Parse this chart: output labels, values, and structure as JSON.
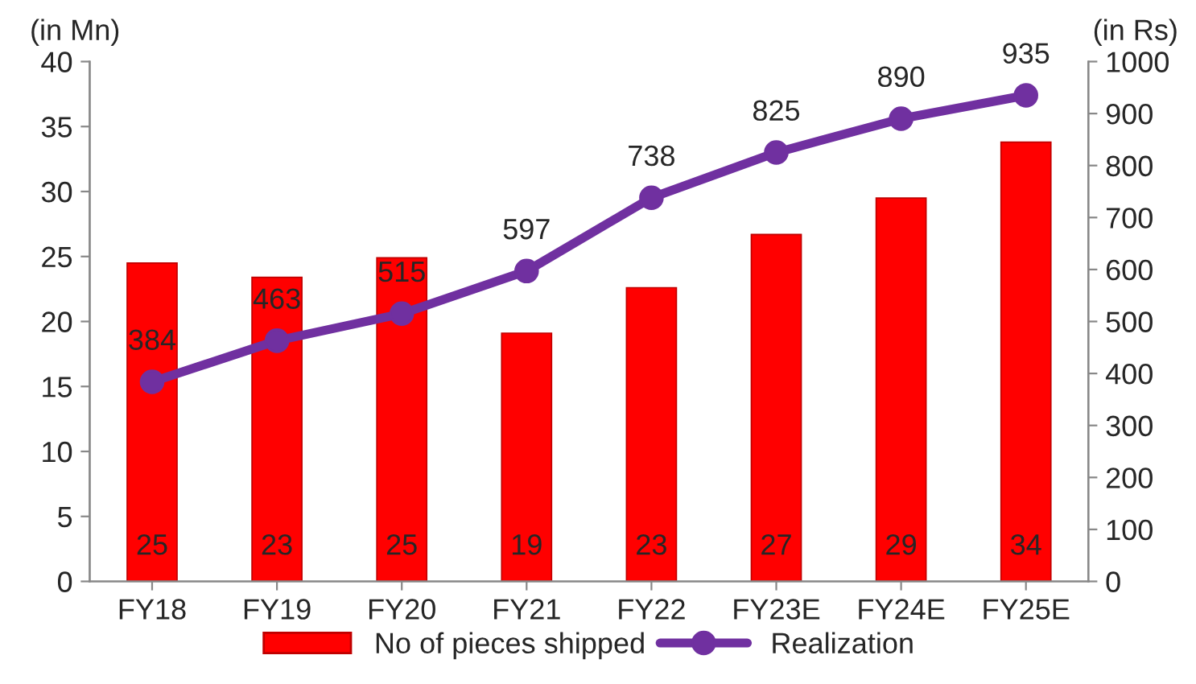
{
  "chart_data": {
    "type": "bar",
    "ylabel": "(in Mn)",
    "y2label": "(in Rs)",
    "categories": [
      "FY18",
      "FY19",
      "FY20",
      "FY21",
      "FY22",
      "FY23E",
      "FY24E",
      "FY25E"
    ],
    "series": [
      {
        "name": "No of pieces shipped",
        "color": "#ff0000",
        "values": [
          24.5,
          23.4,
          24.9,
          19.1,
          22.6,
          26.7,
          29.5,
          33.8
        ],
        "value_labels": [
          "25",
          "23",
          "25",
          "19",
          "23",
          "27",
          "29",
          "34"
        ]
      },
      {
        "name": "Realization",
        "type": "line",
        "axis": "y2",
        "color": "#7030a0",
        "marker": "circle",
        "values": [
          384,
          463,
          515,
          597,
          738,
          825,
          890,
          935
        ],
        "value_labels": [
          "384",
          "463",
          "515",
          "597",
          "738",
          "825",
          "890",
          "935"
        ]
      }
    ],
    "ylim": [
      0,
      40
    ],
    "yticks": [
      0,
      5,
      10,
      15,
      20,
      25,
      30,
      35,
      40
    ],
    "y2lim": [
      0,
      1000
    ],
    "y2ticks": [
      0,
      100,
      200,
      300,
      400,
      500,
      600,
      700,
      800,
      900,
      1000
    ],
    "grid": false,
    "legend": "bottom"
  }
}
